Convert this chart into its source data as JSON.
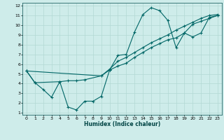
{
  "xlabel": "Humidex (Indice chaleur)",
  "ylabel": "",
  "bg_color": "#ceecea",
  "grid_color": "#b2d8d4",
  "line_color": "#006666",
  "xlim": [
    -0.5,
    23.5
  ],
  "ylim": [
    0.8,
    12.3
  ],
  "xticks": [
    0,
    1,
    2,
    3,
    4,
    5,
    6,
    7,
    8,
    9,
    10,
    11,
    12,
    13,
    14,
    15,
    16,
    17,
    18,
    19,
    20,
    21,
    22,
    23
  ],
  "yticks": [
    1,
    2,
    3,
    4,
    5,
    6,
    7,
    8,
    9,
    10,
    11,
    12
  ],
  "line1_x": [
    0,
    1,
    2,
    3,
    4,
    5,
    6,
    7,
    8,
    9,
    10,
    11,
    12,
    13,
    14,
    15,
    16,
    17,
    18,
    19,
    20,
    21,
    22,
    23
  ],
  "line1_y": [
    5.3,
    4.1,
    3.4,
    2.6,
    4.2,
    1.6,
    1.3,
    2.2,
    2.2,
    2.7,
    5.4,
    6.9,
    7.0,
    9.3,
    11.1,
    11.8,
    11.5,
    10.5,
    7.7,
    9.2,
    8.8,
    9.2,
    10.8,
    11.0
  ],
  "line2_x": [
    0,
    1,
    4,
    5,
    6,
    7,
    9,
    10,
    11,
    12,
    13,
    14,
    15,
    16,
    17,
    18,
    19,
    20,
    21,
    22,
    23
  ],
  "line2_y": [
    5.3,
    4.1,
    4.2,
    4.3,
    4.3,
    4.4,
    4.8,
    5.4,
    5.8,
    6.1,
    6.7,
    7.2,
    7.7,
    8.1,
    8.5,
    8.7,
    9.2,
    10.1,
    10.4,
    10.7,
    11.0
  ],
  "line3_x": [
    0,
    9,
    10,
    11,
    12,
    13,
    14,
    15,
    16,
    17,
    18,
    19,
    20,
    21,
    22,
    23
  ],
  "line3_y": [
    5.3,
    4.8,
    5.5,
    6.3,
    6.7,
    7.2,
    7.7,
    8.2,
    8.6,
    9.0,
    9.5,
    9.9,
    10.3,
    10.7,
    11.0,
    11.1
  ]
}
